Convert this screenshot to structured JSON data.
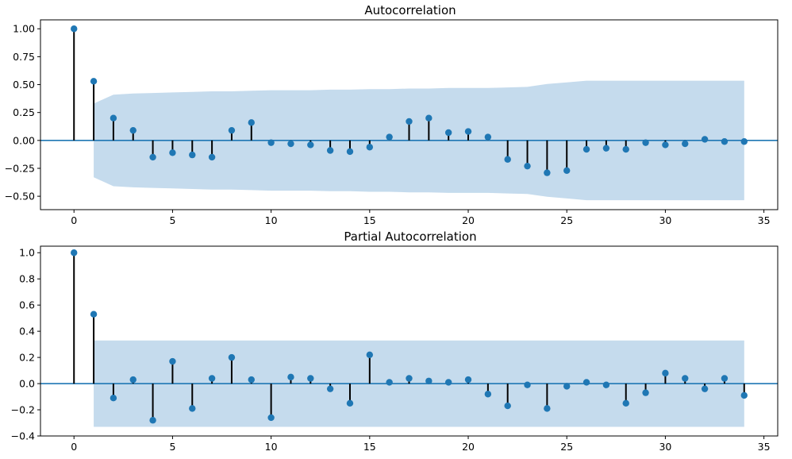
{
  "chart_data": [
    {
      "type": "stem",
      "title": "Autocorrelation",
      "xlabel": "",
      "ylabel": "",
      "xlim": [
        -1.7,
        35.7
      ],
      "ylim": [
        -0.62,
        1.08
      ],
      "xticks": [
        0,
        5,
        10,
        15,
        20,
        25,
        30,
        35
      ],
      "yticks": [
        -0.5,
        -0.25,
        0.0,
        0.25,
        0.5,
        0.75,
        1.0
      ],
      "ytick_labels": [
        "−0.50",
        "−0.25",
        "0.00",
        "0.25",
        "0.50",
        "0.75",
        "1.00"
      ],
      "lags": [
        0,
        1,
        2,
        3,
        4,
        5,
        6,
        7,
        8,
        9,
        10,
        11,
        12,
        13,
        14,
        15,
        16,
        17,
        18,
        19,
        20,
        21,
        22,
        23,
        24,
        25,
        26,
        27,
        28,
        29,
        30,
        31,
        32,
        33,
        34
      ],
      "values": [
        1.0,
        0.53,
        0.2,
        0.09,
        -0.15,
        -0.11,
        -0.13,
        -0.15,
        0.09,
        0.16,
        -0.02,
        -0.03,
        -0.04,
        -0.09,
        -0.1,
        -0.06,
        0.03,
        0.17,
        0.2,
        0.07,
        0.08,
        0.03,
        -0.17,
        -0.23,
        -0.29,
        -0.27,
        -0.08,
        -0.07,
        -0.08,
        -0.02,
        -0.04,
        -0.03,
        0.01,
        -0.01,
        -0.01
      ],
      "confidence_band": [
        0.33,
        0.33,
        0.41,
        0.42,
        0.425,
        0.43,
        0.435,
        0.44,
        0.44,
        0.445,
        0.45,
        0.45,
        0.45,
        0.455,
        0.455,
        0.46,
        0.46,
        0.465,
        0.465,
        0.47,
        0.47,
        0.47,
        0.475,
        0.48,
        0.505,
        0.52,
        0.535,
        0.535,
        0.535,
        0.535,
        0.535,
        0.535,
        0.535,
        0.535,
        0.535
      ],
      "band_start_lag": 1,
      "grid": false,
      "colors": {
        "marker": "#1f77b4",
        "stem": "#000000",
        "band": "#c5dbed",
        "baseline": "#1f77b4"
      }
    },
    {
      "type": "stem",
      "title": "Partial Autocorrelation",
      "xlabel": "",
      "ylabel": "",
      "xlim": [
        -1.7,
        35.7
      ],
      "ylim": [
        -0.4,
        1.05
      ],
      "xticks": [
        0,
        5,
        10,
        15,
        20,
        25,
        30,
        35
      ],
      "yticks": [
        -0.4,
        -0.2,
        0.0,
        0.2,
        0.4,
        0.6,
        0.8,
        1.0
      ],
      "ytick_labels": [
        "−0.4",
        "−0.2",
        "0.0",
        "0.2",
        "0.4",
        "0.6",
        "0.8",
        "1.0"
      ],
      "lags": [
        0,
        1,
        2,
        3,
        4,
        5,
        6,
        7,
        8,
        9,
        10,
        11,
        12,
        13,
        14,
        15,
        16,
        17,
        18,
        19,
        20,
        21,
        22,
        23,
        24,
        25,
        26,
        27,
        28,
        29,
        30,
        31,
        32,
        33,
        34
      ],
      "values": [
        1.0,
        0.53,
        -0.11,
        0.03,
        -0.28,
        0.17,
        -0.19,
        0.04,
        0.2,
        0.03,
        -0.26,
        0.05,
        0.04,
        -0.04,
        -0.15,
        0.22,
        0.01,
        0.04,
        0.02,
        0.01,
        0.03,
        -0.08,
        -0.17,
        -0.01,
        -0.19,
        -0.02,
        0.01,
        -0.01,
        -0.15,
        -0.07,
        0.08,
        0.04,
        -0.04,
        0.04,
        -0.09
      ],
      "confidence_band": [
        0.33,
        0.33,
        0.33,
        0.33,
        0.33,
        0.33,
        0.33,
        0.33,
        0.33,
        0.33,
        0.33,
        0.33,
        0.33,
        0.33,
        0.33,
        0.33,
        0.33,
        0.33,
        0.33,
        0.33,
        0.33,
        0.33,
        0.33,
        0.33,
        0.33,
        0.33,
        0.33,
        0.33,
        0.33,
        0.33,
        0.33,
        0.33,
        0.33,
        0.33,
        0.33
      ],
      "band_start_lag": 1,
      "grid": false,
      "colors": {
        "marker": "#1f77b4",
        "stem": "#000000",
        "band": "#c5dbed",
        "baseline": "#1f77b4"
      }
    }
  ]
}
